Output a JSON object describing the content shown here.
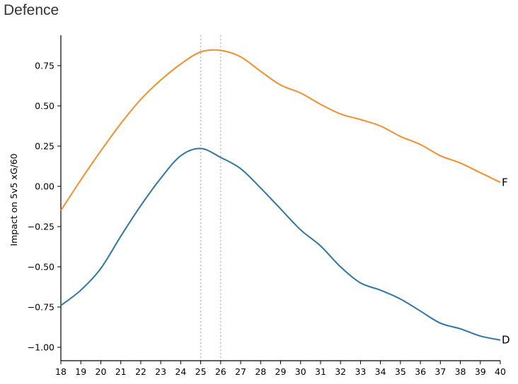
{
  "title": "Defence",
  "chart_data": {
    "type": "line",
    "title": "Defence",
    "xlabel": "",
    "ylabel": "Impact on 5v5 xG/60",
    "xlim": [
      18,
      40
    ],
    "ylim": [
      -1.08,
      0.94
    ],
    "x_ticks": [
      18,
      19,
      20,
      21,
      22,
      23,
      24,
      25,
      26,
      27,
      28,
      29,
      30,
      31,
      32,
      33,
      34,
      35,
      36,
      37,
      38,
      39,
      40
    ],
    "y_ticks": [
      0.75,
      0.5,
      0.25,
      0.0,
      -0.25,
      -0.5,
      -0.75,
      -1.0
    ],
    "y_tick_labels": [
      "0.75",
      "0.50",
      "0.25",
      "0.00",
      "−0.25",
      "−0.50",
      "−0.75",
      "−1.00"
    ],
    "grid": false,
    "legend": "inline end labels",
    "vertical_reference_lines": [
      25,
      26
    ],
    "x": [
      18,
      19,
      20,
      21,
      22,
      23,
      24,
      25,
      26,
      27,
      28,
      29,
      30,
      31,
      32,
      33,
      34,
      35,
      36,
      37,
      38,
      39,
      40
    ],
    "series": [
      {
        "name": "F",
        "color": "#f28e2b",
        "values": [
          -0.15,
          0.04,
          0.22,
          0.39,
          0.54,
          0.66,
          0.76,
          0.835,
          0.845,
          0.805,
          0.715,
          0.63,
          0.58,
          0.51,
          0.45,
          0.415,
          0.375,
          0.31,
          0.26,
          0.19,
          0.145,
          0.085,
          0.025
        ]
      },
      {
        "name": "D",
        "color": "#2e75a8",
        "values": [
          -0.74,
          -0.645,
          -0.51,
          -0.31,
          -0.12,
          0.05,
          0.19,
          0.235,
          0.18,
          0.11,
          -0.01,
          -0.14,
          -0.27,
          -0.37,
          -0.5,
          -0.6,
          -0.645,
          -0.7,
          -0.775,
          -0.85,
          -0.885,
          -0.93,
          -0.955
        ]
      }
    ]
  }
}
